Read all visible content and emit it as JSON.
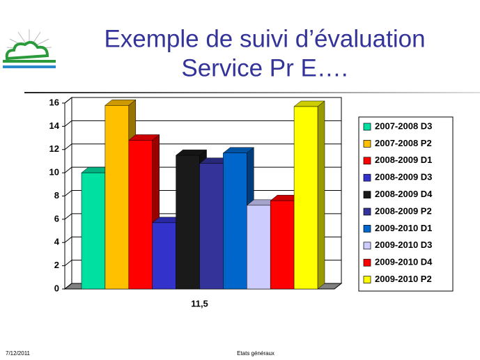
{
  "chart_data": {
    "type": "bar3d",
    "title": [
      "Exemple de suivi d’évaluation",
      "Service Pr E…."
    ],
    "categories": [
      "11,5"
    ],
    "series": [
      {
        "name": "2007-2008 D3",
        "color": "#00e0a0",
        "values": [
          10
        ]
      },
      {
        "name": "2007-2008 P2",
        "color": "#ffc000",
        "values": [
          15.8
        ]
      },
      {
        "name": "2008-2009 D1",
        "color": "#ff0000",
        "values": [
          12.8
        ]
      },
      {
        "name": "2008-2009 D3",
        "color": "#3333cc",
        "values": [
          5.7
        ]
      },
      {
        "name": "2008-2009 D4",
        "color": "#1a1a1a",
        "values": [
          11.5
        ]
      },
      {
        "name": "2008-2009 P2",
        "color": "#333399",
        "values": [
          10.8
        ]
      },
      {
        "name": "2009-2010 D1",
        "color": "#0066cc",
        "values": [
          11.7
        ]
      },
      {
        "name": "2009-2010 D3",
        "color": "#ccccff",
        "values": [
          7.2
        ]
      },
      {
        "name": "2009-2010 D4",
        "color": "#ff0000",
        "values": [
          7.6
        ]
      },
      {
        "name": "2009-2010 P2",
        "color": "#ffff00",
        "values": [
          15.7
        ]
      }
    ],
    "ylim": [
      0,
      16
    ],
    "yticks": [
      0,
      2,
      4,
      6,
      8,
      10,
      12,
      14,
      16
    ],
    "grid": true,
    "legend": "right"
  },
  "footer": {
    "date": "7/12/2011",
    "center": "Etats généraux"
  }
}
